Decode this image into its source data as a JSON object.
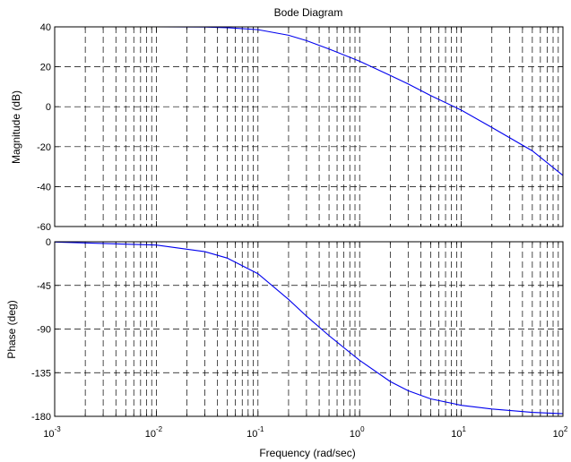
{
  "chart_data": {
    "type": "line",
    "title": "Bode Diagram",
    "xlabel": "Frequency  (rad/sec)",
    "xscale": "log",
    "xlim": [
      0.001,
      100
    ],
    "x_tick_labels": [
      {
        "base": "10",
        "exp": "-3"
      },
      {
        "base": "10",
        "exp": "-2"
      },
      {
        "base": "10",
        "exp": "-1"
      },
      {
        "base": "10",
        "exp": "0"
      },
      {
        "base": "10",
        "exp": "1"
      },
      {
        "base": "10",
        "exp": "2"
      }
    ],
    "grid": true,
    "panels": [
      {
        "name": "magnitude",
        "ylabel": "Magnitude (dB)",
        "ylim": [
          -60,
          40
        ],
        "yticks": [
          40,
          20,
          0,
          -20,
          -40,
          -60
        ],
        "ytick_labels": [
          "40",
          "20",
          "0",
          "-20",
          "-40",
          "-60"
        ],
        "series": [
          {
            "color": "#0000ee",
            "x": [
              0.001,
              0.01,
              0.03,
              0.05,
              0.1,
              0.2,
              0.3,
              0.5,
              1,
              2,
              3,
              5,
              10,
              20,
              50,
              100
            ],
            "y": [
              40,
              40,
              39.9,
              39.6,
              38.6,
              35.8,
              33.1,
              28.9,
              22.8,
              15.7,
              11.4,
              5.6,
              -1.7,
              -10.4,
              -22.1,
              -34.4
            ]
          }
        ]
      },
      {
        "name": "phase",
        "ylabel": "Phase (deg)",
        "ylim": [
          -180,
          0
        ],
        "yticks": [
          0,
          -45,
          -90,
          -135,
          -180
        ],
        "ytick_labels": [
          "0",
          "-45",
          "-90",
          "-135",
          "-180"
        ],
        "series": [
          {
            "color": "#0000ee",
            "x": [
              0.001,
              0.01,
              0.03,
              0.05,
              0.1,
              0.2,
              0.3,
              0.5,
              1,
              2,
              3,
              5,
              10,
              20,
              50,
              100
            ],
            "y": [
              -0.3,
              -3.4,
              -10.2,
              -16.9,
              -33.0,
              -59.5,
              -76.7,
              -96.8,
              -122.3,
              -144.1,
              -153.6,
              -162.0,
              -168.6,
              -172.4,
              -175.9,
              -177.3
            ]
          }
        ]
      }
    ]
  }
}
